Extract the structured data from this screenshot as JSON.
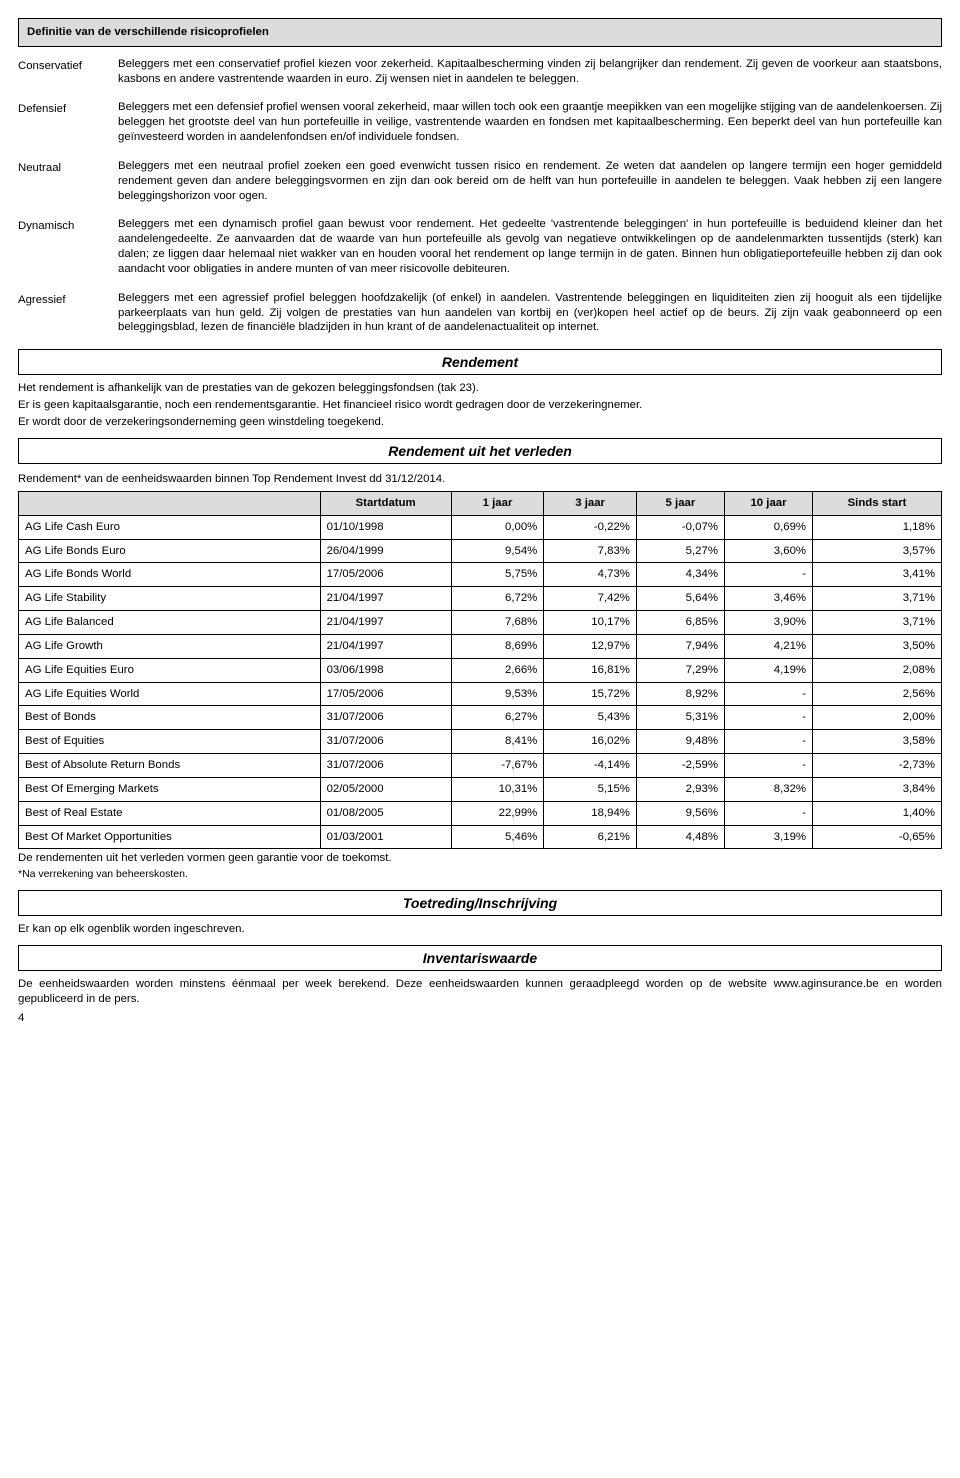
{
  "header1": "Definitie van de verschillende risicoprofielen",
  "profiles": [
    {
      "label": "Conservatief",
      "desc": "Beleggers met een conservatief profiel kiezen voor zekerheid. Kapitaalbescherming vinden zij belangrijker dan rendement. Zij geven de voorkeur aan staatsbons, kasbons en andere vastrentende waarden in euro. Zij wensen niet in aandelen te beleggen."
    },
    {
      "label": "Defensief",
      "desc": "Beleggers met een defensief profiel wensen vooral zekerheid, maar willen toch ook een graantje meepikken van een mogelijke stijging van de aandelenkoersen. Zij beleggen het grootste deel van hun portefeuille in veilige, vastrentende waarden en fondsen met kapitaalbescherming. Een beperkt deel van hun portefeuille kan geïnvesteerd worden in aandelenfondsen en/of individuele fondsen."
    },
    {
      "label": "Neutraal",
      "desc": "Beleggers met een neutraal profiel zoeken een goed evenwicht tussen risico en rendement. Ze weten dat aandelen op langere termijn een hoger gemiddeld rendement geven dan andere beleggingsvormen en zijn dan ook bereid om de helft van hun portefeuille in aandelen te beleggen. Vaak hebben zij een langere beleggingshorizon voor ogen."
    },
    {
      "label": "Dynamisch",
      "desc": "Beleggers met een dynamisch profiel gaan bewust voor rendement. Het gedeelte 'vastrentende beleggingen' in hun portefeuille is beduidend kleiner dan het aandelengedeelte. Ze aanvaarden dat de waarde van hun portefeuille als gevolg van negatieve ontwikkelingen op de aandelenmarkten tussentijds (sterk) kan dalen; ze liggen daar helemaal niet wakker van en houden vooral het rendement op lange termijn in de gaten. Binnen hun obligatieportefeuille hebben zij dan ook aandacht voor obligaties in andere munten of van meer risicovolle debiteuren."
    },
    {
      "label": "Agressief",
      "desc": "Beleggers met een agressief profiel beleggen hoofdzakelijk (of enkel) in aandelen. Vastrentende beleggingen en liquiditeiten zien zij hooguit als een tijdelijke parkeerplaats van hun geld. Zij volgen de prestaties van hun aandelen van kortbij en (ver)kopen heel actief op de beurs. Zij zijn vaak geabonneerd op een beleggingsblad, lezen de financiële bladzijden in hun krant of de aandelenactualiteit op internet."
    }
  ],
  "section_rendement": "Rendement",
  "rendement_p1": "Het rendement is afhankelijk van de prestaties van de gekozen beleggingsfondsen (tak 23).",
  "rendement_p2": "Er is geen kapitaalsgarantie, noch een rendementsgarantie. Het financieel risico wordt gedragen door de verzekeringnemer.",
  "rendement_p3": "Er wordt door de verzekeringsonderneming geen winstdeling toegekend.",
  "section_rendement_past": "Rendement uit het verleden",
  "past_intro": "Rendement* van de eenheidswaarden binnen Top Rendement Invest dd 31/12/2014.",
  "table": {
    "columns": [
      "",
      "Startdatum",
      "1 jaar",
      "3 jaar",
      "5 jaar",
      "10 jaar",
      "Sinds start"
    ],
    "rows": [
      [
        "AG Life Cash Euro",
        "01/10/1998",
        "0,00%",
        "-0,22%",
        "-0,07%",
        "0,69%",
        "1,18%"
      ],
      [
        "AG Life Bonds Euro",
        "26/04/1999",
        "9,54%",
        "7,83%",
        "5,27%",
        "3,60%",
        "3,57%"
      ],
      [
        "AG Life Bonds World",
        "17/05/2006",
        "5,75%",
        "4,73%",
        "4,34%",
        "-",
        "3,41%"
      ],
      [
        "AG Life Stability",
        "21/04/1997",
        "6,72%",
        "7,42%",
        "5,64%",
        "3,46%",
        "3,71%"
      ],
      [
        "AG Life Balanced",
        "21/04/1997",
        "7,68%",
        "10,17%",
        "6,85%",
        "3,90%",
        "3,71%"
      ],
      [
        "AG Life Growth",
        "21/04/1997",
        "8,69%",
        "12,97%",
        "7,94%",
        "4,21%",
        "3,50%"
      ],
      [
        "AG Life Equities Euro",
        "03/06/1998",
        "2,66%",
        "16,81%",
        "7,29%",
        "4,19%",
        "2,08%"
      ],
      [
        "AG Life Equities World",
        "17/05/2006",
        "9,53%",
        "15,72%",
        "8,92%",
        "-",
        "2,56%"
      ],
      [
        "Best of Bonds",
        "31/07/2006",
        "6,27%",
        "5,43%",
        "5,31%",
        "-",
        "2,00%"
      ],
      [
        "Best of Equities",
        "31/07/2006",
        "8,41%",
        "16,02%",
        "9,48%",
        "-",
        "3,58%"
      ],
      [
        "Best of Absolute Return Bonds",
        "31/07/2006",
        "-7,67%",
        "-4,14%",
        "-2,59%",
        "-",
        "-2,73%"
      ],
      [
        "Best Of Emerging Markets",
        "02/05/2000",
        "10,31%",
        "5,15%",
        "2,93%",
        "8,32%",
        "3,84%"
      ],
      [
        "Best of Real Estate",
        "01/08/2005",
        "22,99%",
        "18,94%",
        "9,56%",
        "-",
        "1,40%"
      ],
      [
        "Best Of Market Opportunities",
        "01/03/2001",
        "5,46%",
        "6,21%",
        "4,48%",
        "3,19%",
        "-0,65%"
      ]
    ]
  },
  "past_note1": "De rendementen uit het verleden vormen geen garantie voor de toekomst.",
  "past_note2": "*Na verrekening van beheerskosten.",
  "section_toetreding": "Toetreding/Inschrijving",
  "toetreding_p": "Er kan op elk ogenblik worden ingeschreven.",
  "section_inv": "Inventariswaarde",
  "inv_p": "De eenheidswaarden worden minstens éénmaal per week berekend. Deze eenheidswaarden kunnen geraadpleegd worden op de website www.aginsurance.be en worden gepubliceerd in de pers.",
  "page_number": "4"
}
